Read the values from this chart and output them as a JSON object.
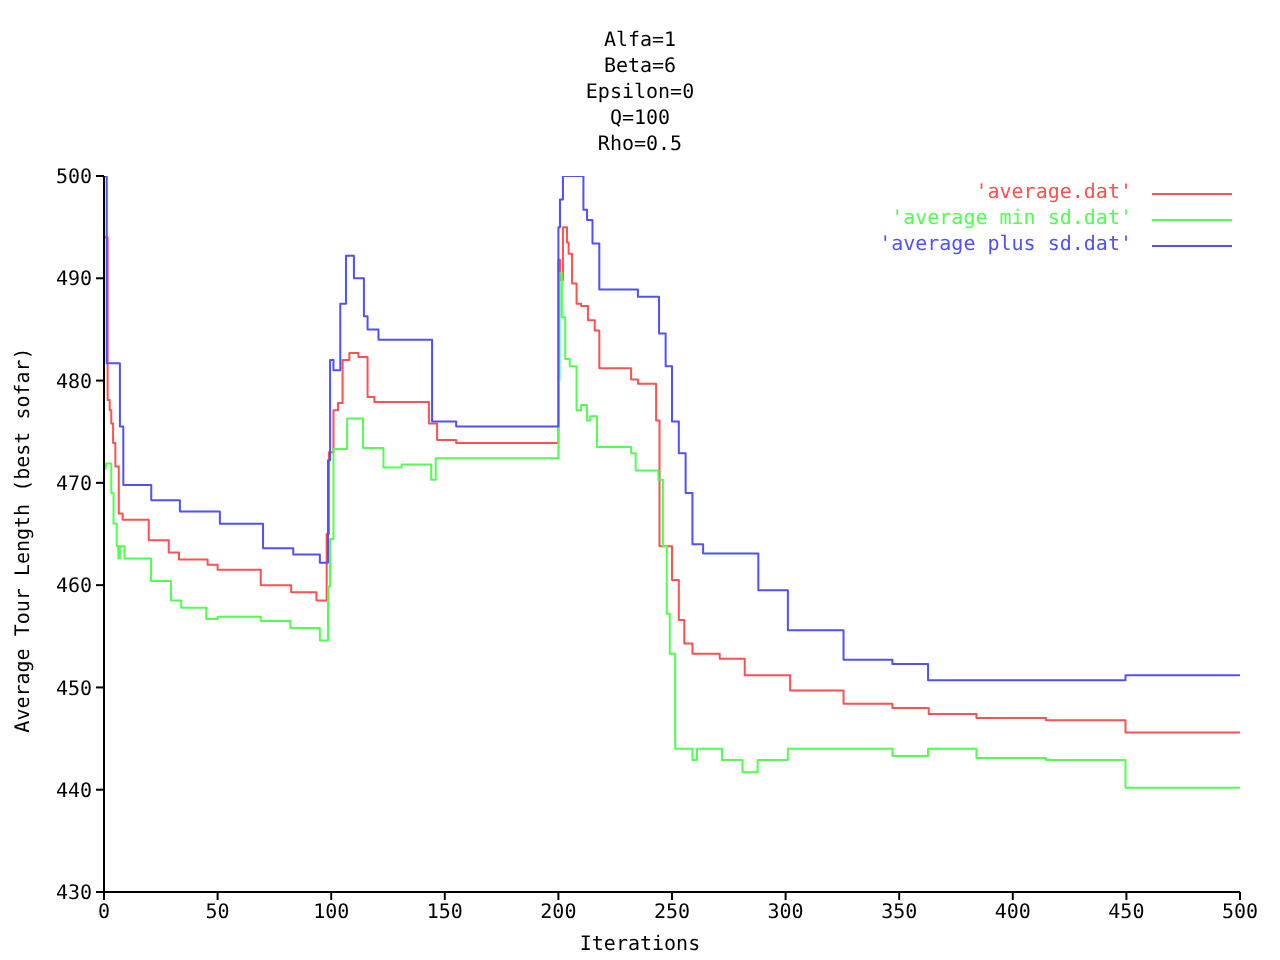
{
  "chart_data": {
    "type": "step",
    "title": "Alfa=1\nBeta=6\nEpsilon=0\nQ=100\nRho=0.5",
    "xlabel": "Iterations",
    "ylabel": "Average Tour Length (best sofar)",
    "xlim": [
      0,
      500
    ],
    "xticks": [
      0,
      50,
      100,
      150,
      200,
      250,
      300,
      350,
      400,
      450,
      500
    ],
    "ylim": [
      430,
      500
    ],
    "yticks": [
      430,
      440,
      450,
      460,
      470,
      480,
      490,
      500
    ],
    "legend": "top right",
    "series": [
      {
        "name": "'average.dat'",
        "color": "#ff5050",
        "x": [
          0,
          1.6,
          2.5,
          3.2,
          4,
          5,
          6.5,
          8.2,
          19.7,
          28.5,
          33,
          45.6,
          50,
          69,
          82.4,
          93.5,
          98,
          99,
          101,
          103,
          105,
          108,
          112,
          116,
          119,
          143,
          146.6,
          148,
          155,
          200,
          200.7,
          202,
          203.8,
          204.5,
          205.5,
          206,
          208,
          210,
          213,
          216,
          218,
          220,
          232,
          235,
          243,
          244.5,
          250,
          253,
          255.4,
          259,
          263.7,
          271,
          282,
          287.7,
          302,
          325.5,
          347,
          363,
          384,
          414.6,
          449.6,
          500
        ],
        "values": [
          494,
          478.1,
          477.1,
          475.8,
          473.9,
          471.6,
          467,
          466.4,
          464.4,
          463.2,
          462.5,
          462,
          461.5,
          460,
          459.3,
          458.5,
          465,
          473,
          477.1,
          477.8,
          482,
          482.7,
          482.3,
          478.4,
          477.9,
          475.8,
          474.2,
          474.2,
          473.9,
          491.8,
          489.8,
          495,
          493.5,
          492.4,
          492.4,
          489.5,
          487.5,
          487.3,
          485.9,
          484.9,
          481.2,
          481.2,
          480.1,
          479.7,
          476.1,
          463.8,
          460.5,
          456.6,
          454.3,
          453.3,
          453.3,
          452.8,
          451.2,
          451.2,
          449.7,
          448.4,
          448,
          447.4,
          447,
          446.8,
          445.6,
          445.6
        ]
      },
      {
        "name": "'average min sd.dat'",
        "color": "#50ff50",
        "x": [
          0,
          0.8,
          3.2,
          4.2,
          5.6,
          6.3,
          7,
          9,
          10.5,
          20.7,
          29.5,
          34,
          45,
          50,
          69,
          82,
          95,
          98.6,
          99.5,
          101,
          102,
          107,
          114,
          123,
          131,
          144,
          146,
          147,
          200,
          200.5,
          201.5,
          203,
          205,
          208,
          210,
          212.6,
          214,
          217,
          219,
          232,
          234,
          244,
          246,
          247.7,
          249,
          251.4,
          259,
          261,
          264,
          272,
          281,
          287.7,
          301,
          347,
          362.7,
          384,
          414.6,
          449.6,
          500
        ],
        "values": [
          471.4,
          471.9,
          469,
          466,
          463.8,
          462.6,
          463.8,
          462.6,
          462.6,
          460.4,
          458.5,
          457.8,
          456.7,
          456.9,
          456.5,
          455.8,
          454.6,
          459.9,
          464.5,
          473.3,
          473.3,
          476.3,
          473.4,
          471.5,
          471.8,
          470.3,
          472.4,
          472.4,
          480,
          490.5,
          486.2,
          482.1,
          481.4,
          477.1,
          477.6,
          476.1,
          476.5,
          473.5,
          473.5,
          472.9,
          471.2,
          470.3,
          463.8,
          457.2,
          453.3,
          444,
          442.9,
          444,
          444,
          442.9,
          441.7,
          442.9,
          444,
          443.3,
          444,
          443.1,
          442.9,
          440.2,
          440.2
        ]
      },
      {
        "name": "'average plus sd.dat'",
        "color": "#5050ff",
        "x": [
          0,
          1.2,
          7,
          8.5,
          20.8,
          33.4,
          51,
          70,
          83.3,
          95,
          98.6,
          99.5,
          101,
          104,
          106.5,
          110,
          114.4,
          116,
          120.8,
          144.4,
          155,
          200,
          200.7,
          202,
          203.7,
          211,
          212.6,
          215,
          218,
          235,
          244.3,
          247.2,
          250,
          253,
          256,
          259,
          263.7,
          288,
          301,
          325.5,
          347,
          362.7,
          449.6,
          500
        ],
        "values": [
          500,
          481.7,
          475.5,
          469.8,
          468.3,
          467.2,
          466,
          463.6,
          463,
          462.2,
          472.2,
          482,
          481,
          487.5,
          492.2,
          490,
          486.3,
          485,
          484,
          476,
          475.5,
          495,
          497.7,
          500,
          500,
          496.7,
          495.7,
          493.4,
          488.9,
          488.2,
          484.6,
          481.4,
          476,
          472.9,
          469,
          464,
          463.1,
          459.5,
          455.6,
          452.7,
          452.3,
          450.7,
          451.2,
          451.2
        ]
      }
    ]
  }
}
